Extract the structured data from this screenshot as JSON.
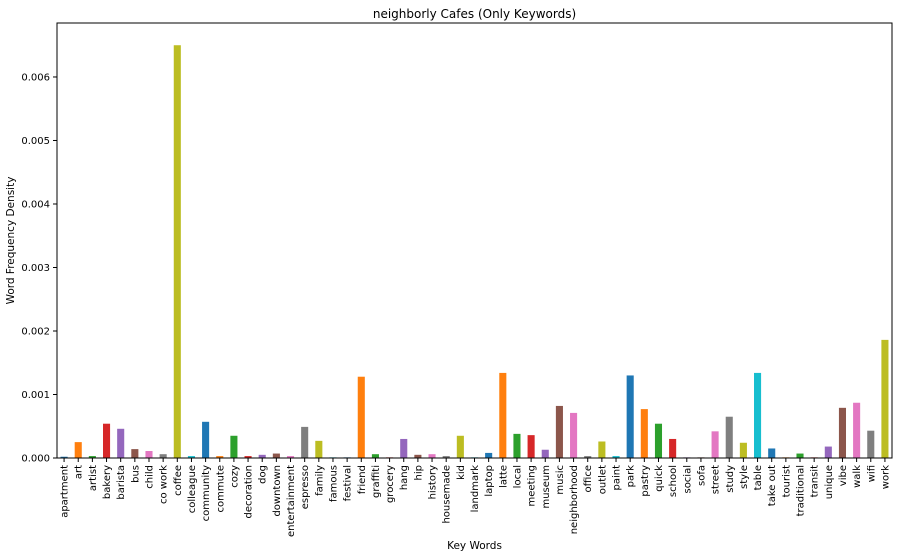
{
  "chart_data": {
    "type": "bar",
    "title": "neighborly Cafes (Only Keywords)",
    "xlabel": "Key Words",
    "ylabel": "Word Frequency Density",
    "ylim": [
      0,
      0.00685
    ],
    "yticks": [
      "0.000",
      "0.001",
      "0.002",
      "0.003",
      "0.004",
      "0.005",
      "0.006"
    ],
    "grid": false,
    "categories": [
      "apartment",
      "art",
      "artist",
      "bakery",
      "barista",
      "bus",
      "child",
      "co work",
      "coffee",
      "colleague",
      "community",
      "commute",
      "cozy",
      "decoration",
      "dog",
      "downtown",
      "entertainment",
      "espresso",
      "family",
      "famous",
      "festival",
      "friend",
      "graffiti",
      "grocery",
      "hang",
      "hip",
      "history",
      "housemade",
      "kid",
      "landmark",
      "laptop",
      "latte",
      "local",
      "meeting",
      "museum",
      "music",
      "neighborhood",
      "office",
      "outlet",
      "paint",
      "park",
      "pastry",
      "quick",
      "school",
      "social",
      "sofa",
      "street",
      "study",
      "style",
      "table",
      "take out",
      "tourist",
      "traditional",
      "transit",
      "unique",
      "vibe",
      "walk",
      "wifi",
      "work"
    ],
    "values": [
      2e-05,
      0.00025,
      3e-05,
      0.00054,
      0.00046,
      0.00014,
      0.00011,
      6e-05,
      0.0065,
      3e-05,
      0.00057,
      3e-05,
      0.00035,
      3e-05,
      5e-05,
      7e-05,
      3e-05,
      0.00049,
      0.00027,
      1e-05,
      1e-05,
      0.00128,
      6e-05,
      1e-05,
      0.0003,
      5e-05,
      6e-05,
      3e-05,
      0.00035,
      1e-05,
      8e-05,
      0.00134,
      0.00038,
      0.00036,
      0.00013,
      0.00082,
      0.00071,
      3e-05,
      0.00026,
      3e-05,
      0.0013,
      0.00077,
      0.00054,
      0.0003,
      1e-05,
      1e-05,
      0.00042,
      0.00065,
      0.00024,
      0.00134,
      0.00015,
      1e-05,
      7e-05,
      1e-05,
      0.00018,
      0.00079,
      0.00087,
      0.00043,
      0.00186
    ],
    "colors": [
      "#1f77b4",
      "#ff7f0e",
      "#2ca02c",
      "#d62728",
      "#9467bd",
      "#8c564b",
      "#e377c2",
      "#7f7f7f",
      "#bcbd22",
      "#17becf"
    ]
  }
}
